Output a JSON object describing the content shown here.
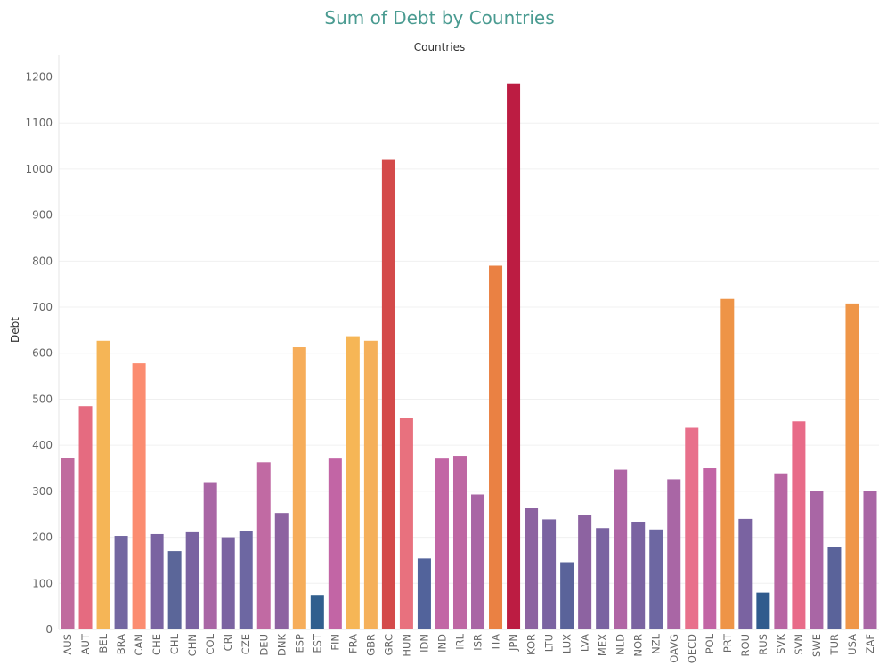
{
  "chart_data": {
    "type": "bar",
    "title": "Sum of Debt by Countries",
    "subtitle": "Countries",
    "ylabel": "Debt",
    "xlabel": "",
    "ylim": [
      0,
      1230
    ],
    "yticks": [
      0,
      100,
      200,
      300,
      400,
      500,
      600,
      700,
      800,
      900,
      1000,
      1100,
      1200
    ],
    "grid": true,
    "categories": [
      "AUS",
      "AUT",
      "BEL",
      "BRA",
      "CAN",
      "CHE",
      "CHL",
      "CHN",
      "COL",
      "CRI",
      "CZE",
      "DEU",
      "DNK",
      "ESP",
      "EST",
      "FIN",
      "FRA",
      "GBR",
      "GRC",
      "HUN",
      "IDN",
      "IND",
      "IRL",
      "ISR",
      "ITA",
      "JPN",
      "KOR",
      "LTU",
      "LUX",
      "LVA",
      "MEX",
      "NLD",
      "NOR",
      "NZL",
      "OAVG",
      "OECD",
      "POL",
      "PRT",
      "ROU",
      "RUS",
      "SVK",
      "SVN",
      "SWE",
      "TUR",
      "USA",
      "ZAF"
    ],
    "values": [
      373,
      485,
      627,
      203,
      578,
      207,
      170,
      211,
      320,
      200,
      214,
      363,
      253,
      613,
      75,
      371,
      637,
      627,
      1020,
      460,
      154,
      371,
      377,
      293,
      790,
      1186,
      263,
      239,
      146,
      248,
      220,
      347,
      234,
      217,
      326,
      438,
      350,
      718,
      240,
      80,
      339,
      452,
      301,
      178,
      708,
      301
    ],
    "colors": [
      "#c06b9e",
      "#e56b80",
      "#f5b556",
      "#7367a1",
      "#fb8c70",
      "#7a63a1",
      "#5b6699",
      "#7a63a1",
      "#a966a5",
      "#7a63a1",
      "#6d67a2",
      "#c16aa3",
      "#8d63a1",
      "#f6ad5a",
      "#315f8e",
      "#c265a5",
      "#f6b656",
      "#f5b05a",
      "#d44a4a",
      "#e8717e",
      "#52639b",
      "#c266a5",
      "#be67a3",
      "#a966a5",
      "#ea8143",
      "#bc1c42",
      "#8d63a1",
      "#7a63a1",
      "#5a639a",
      "#8d63a1",
      "#7a63a1",
      "#b065a5",
      "#7a63a1",
      "#6d67a2",
      "#a966a5",
      "#e8708b",
      "#c265a5",
      "#ee9447",
      "#7a63a1",
      "#305b8d",
      "#b865a3",
      "#e86b88",
      "#a966a5",
      "#5a639a",
      "#ef9648",
      "#a966a5"
    ]
  }
}
